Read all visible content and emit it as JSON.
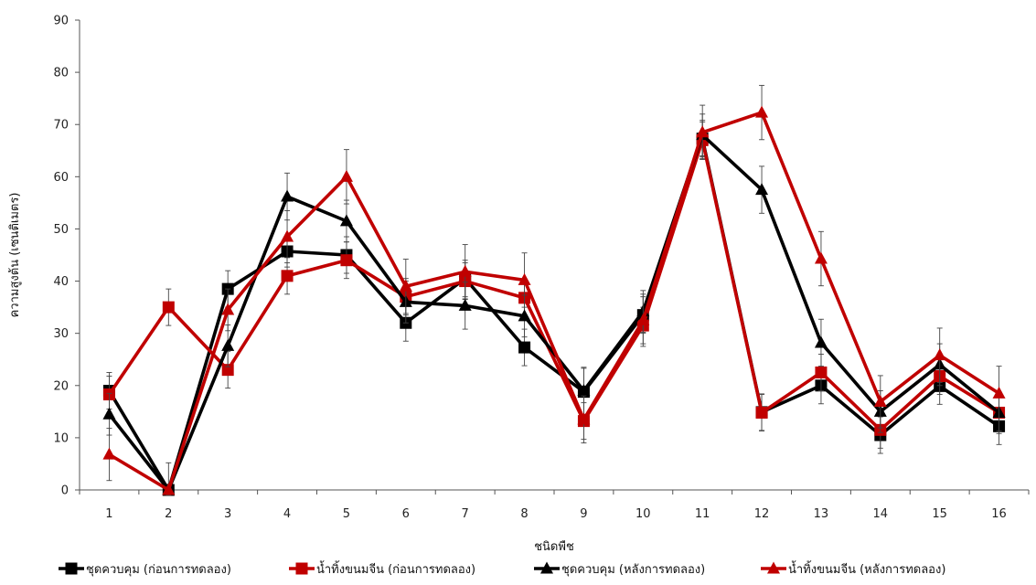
{
  "chart_data": {
    "type": "line",
    "xlabel": "ชนิดพืช",
    "ylabel": "ความสูงต้น (เซนติเมตร)",
    "ylim": [
      0,
      90
    ],
    "yticks": [
      0,
      10,
      20,
      30,
      40,
      50,
      60,
      70,
      80,
      90
    ],
    "categories": [
      "1",
      "2",
      "3",
      "4",
      "5",
      "6",
      "7",
      "8",
      "9",
      "10",
      "11",
      "12",
      "13",
      "14",
      "15",
      "16"
    ],
    "grid": false,
    "legend_position": "bottom",
    "series": [
      {
        "name": "ชุดควบคุม (ก่อนการทดลอง)",
        "color": "#000000",
        "marker": "square",
        "values": [
          19.0,
          0,
          38.5,
          45.7,
          45.0,
          32.0,
          40.5,
          27.3,
          18.8,
          33.5,
          67.3,
          14.9,
          20.0,
          10.5,
          19.9,
          12.2
        ],
        "errors": [
          3.5,
          0.5,
          3.5,
          3.0,
          3.5,
          3.5,
          3.5,
          3.5,
          4.5,
          3.5,
          3.5,
          3.5,
          3.5,
          3.5,
          3.5,
          3.5
        ]
      },
      {
        "name": "น้ำทิ้งขนมจีน (ก่อนการทดลอง)",
        "color": "#c00000",
        "marker": "square",
        "values": [
          18.3,
          35.0,
          23.0,
          41.0,
          44.0,
          37.0,
          40.0,
          36.8,
          13.2,
          31.5,
          67.0,
          14.8,
          22.5,
          11.5,
          21.8,
          14.8
        ],
        "errors": [
          3.5,
          3.5,
          3.5,
          3.5,
          3.5,
          3.5,
          3.5,
          3.5,
          3.5,
          3.5,
          3.5,
          3.5,
          3.5,
          3.5,
          3.5,
          3.5
        ]
      },
      {
        "name": "ชุดควบคุม (หลังการทดลอง)",
        "color": "#000000",
        "marker": "triangle",
        "values": [
          14.5,
          0,
          27.6,
          56.2,
          51.5,
          36.0,
          35.3,
          33.3,
          19.0,
          34.2,
          68.0,
          57.5,
          28.2,
          15.0,
          24.0,
          14.8
        ],
        "errors": [
          4.0,
          0.5,
          4.0,
          4.5,
          4.0,
          4.0,
          4.5,
          4.0,
          4.5,
          4.0,
          4.0,
          4.5,
          4.5,
          4.0,
          4.0,
          4.0
        ]
      },
      {
        "name": "น้ำทิ้งขนมจีน (หลังการทดลอง)",
        "color": "#c00000",
        "marker": "triangle",
        "values": [
          6.8,
          0,
          34.5,
          48.5,
          60.0,
          39.0,
          41.8,
          40.2,
          13.5,
          32.5,
          68.5,
          72.3,
          44.3,
          16.9,
          25.8,
          18.5
        ],
        "errors": [
          5.0,
          5.2,
          4.0,
          5.0,
          5.2,
          5.2,
          5.2,
          5.2,
          4.5,
          5.0,
          5.2,
          5.2,
          5.2,
          5.0,
          5.2,
          5.2
        ]
      }
    ]
  }
}
